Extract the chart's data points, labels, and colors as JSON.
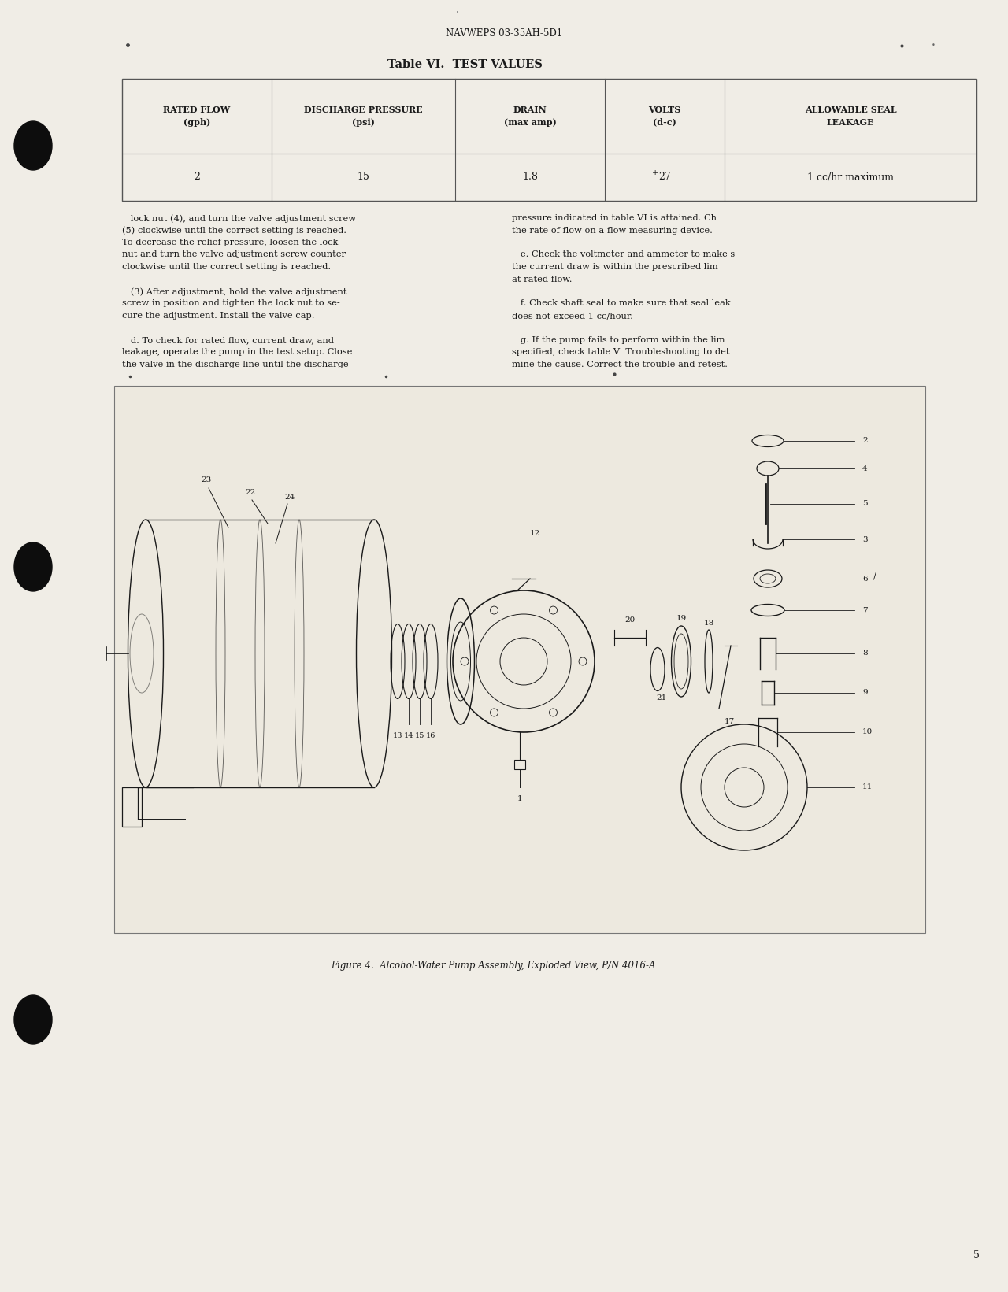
{
  "page_title": "NAVWEPS 03-35AH-5D1",
  "table_title": "Table VI.  TEST VALUES",
  "table_headers": [
    "RATED FLOW\n(gph)",
    "DISCHARGE PRESSURE\n(psi)",
    "DRAIN\n(max amp)",
    "VOLTS\n(d-c)",
    "ALLOWABLE SEAL\nLEAKAGE"
  ],
  "table_values": [
    "2",
    "15",
    "1.8",
    "27",
    "1 cc/hr maximum"
  ],
  "body_left": [
    "   lock nut (4), and turn the valve adjustment screw",
    "(5) clockwise until the correct setting is reached.",
    "To decrease the relief pressure, loosen the lock",
    "nut and turn the valve adjustment screw counter-",
    "clockwise until the correct setting is reached.",
    "",
    "   (3) After adjustment, hold the valve adjustment",
    "screw in position and tighten the lock nut to se-",
    "cure the adjustment. Install the valve cap.",
    "",
    "   d. To check for rated flow, current draw, and",
    "leakage, operate the pump in the test setup. Close",
    "the valve in the discharge line until the discharge"
  ],
  "body_right": [
    "pressure indicated in table VI is attained. Ch",
    "the rate of flow on a flow measuring device.",
    "",
    "   e. Check the voltmeter and ammeter to make s",
    "the current draw is within the prescribed lim",
    "at rated flow.",
    "",
    "   f. Check shaft seal to make sure that seal leak",
    "does not exceed 1 cc/hour.",
    "",
    "   g. If the pump fails to perform within the lim",
    "specified, check table V  Troubleshooting to det",
    "mine the cause. Correct the trouble and retest."
  ],
  "figure_caption": "Figure 4.  Alcohol-Water Pump Assembly, Exploded View, P/N 4016-A",
  "bg_color": "#f0ede6",
  "text_color": "#1a1a1a",
  "page_number": "5"
}
